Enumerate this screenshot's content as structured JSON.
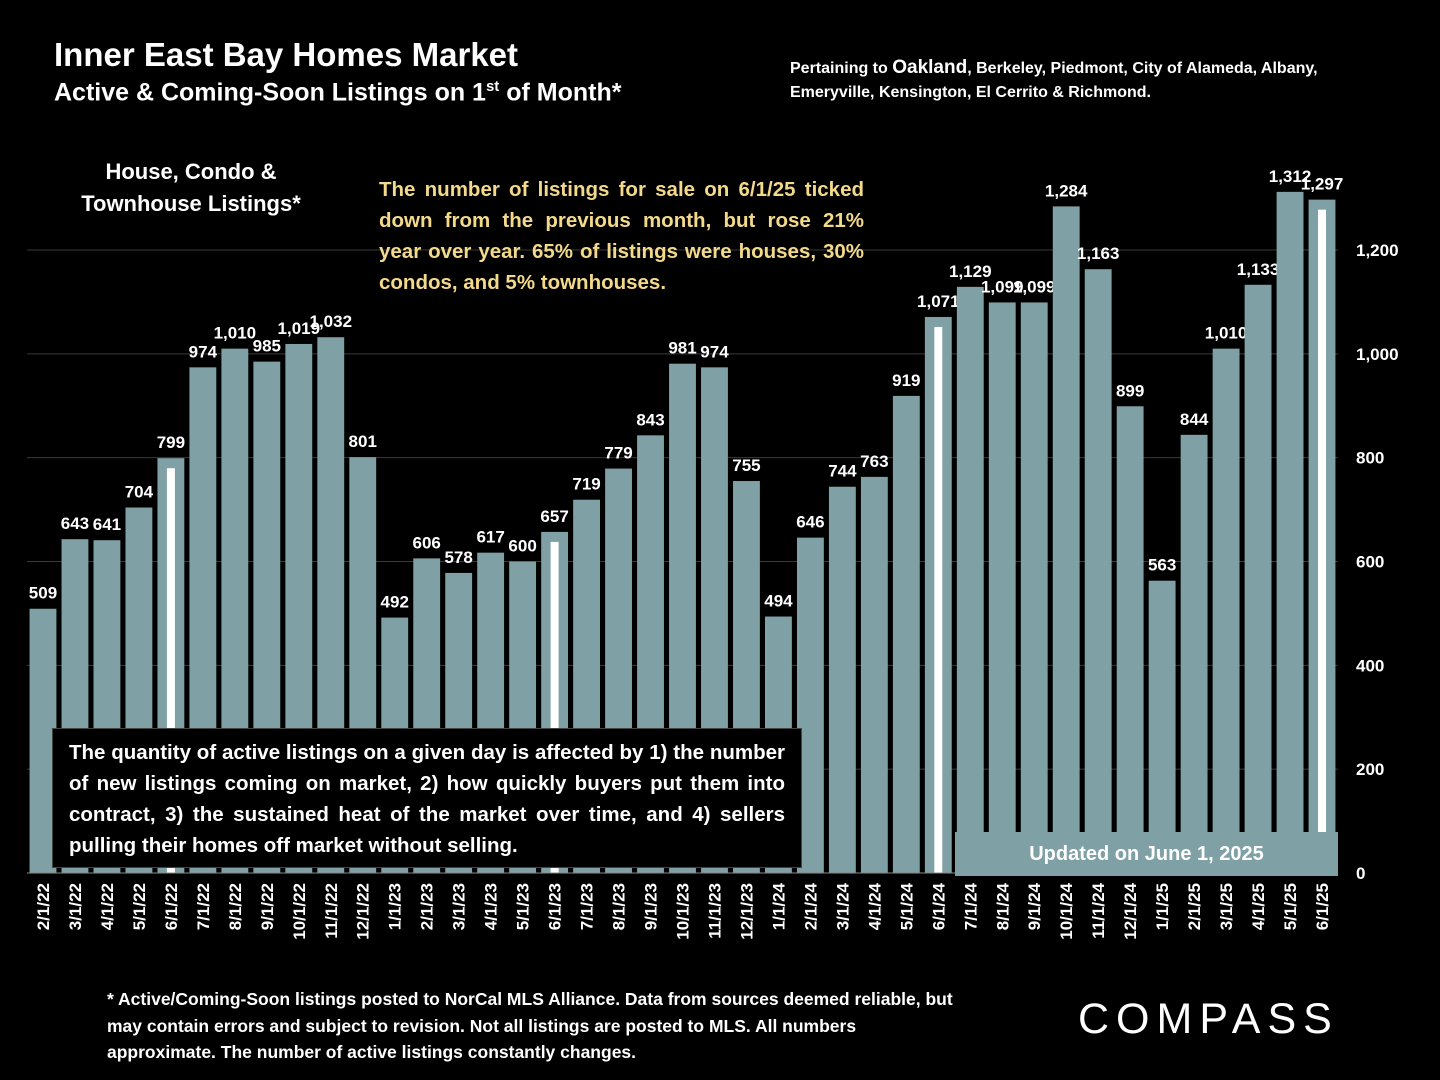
{
  "header": {
    "title": "Inner East Bay Homes Market",
    "subtitle_main": "Active & Coming-Soon Listings on 1",
    "subtitle_sup": "st",
    "subtitle_end": " of Month*",
    "pertaining_prefix": "Pertaining to ",
    "pertaining_city": "Oakland",
    "pertaining_rest": ", Berkeley, Piedmont, City of Alameda, Albany, Emeryville, Kensington, El Cerrito & Richmond."
  },
  "listing_label": "House, Condo & Townhouse Listings*",
  "note_yellow": "The number of listings for sale on 6/1/25 ticked down from the previous month, but rose 21% year over year. 65% of listings were houses, 30% condos, and 5% townhouses.",
  "note_box": "The quantity of active listings on a given day is affected by 1) the number of new listings coming on market, 2) how quickly buyers put them into contract, 3) the sustained heat of the market over time, and 4) sellers pulling their homes off market without selling.",
  "updated": "Updated on June 1, 2025",
  "footnote": "* Active/Coming-Soon listings posted to NorCal MLS Alliance.  Data from sources deemed reliable, but may contain errors and subject to revision.  Not all listings are posted to MLS. All numbers approximate. The number of active listings constantly changes.",
  "logo": "COMPASS",
  "colors": {
    "bar": "#7fa0a5",
    "background": "#000000",
    "highlight": "#ffffff",
    "note": "#f3d98a"
  },
  "chart_data": {
    "type": "bar",
    "title": "Active & Coming-Soon Listings on 1st of Month*",
    "categories": [
      "2/1/22",
      "3/1/22",
      "4/1/22",
      "5/1/22",
      "6/1/22",
      "7/1/22",
      "8/1/22",
      "9/1/22",
      "10/1/22",
      "11/1/22",
      "12/1/22",
      "1/1/23",
      "2/1/23",
      "3/1/23",
      "4/1/23",
      "5/1/23",
      "6/1/23",
      "7/1/23",
      "8/1/23",
      "9/1/23",
      "10/1/23",
      "11/1/23",
      "12/1/23",
      "1/1/24",
      "2/1/24",
      "3/1/24",
      "4/1/24",
      "5/1/24",
      "6/1/24",
      "7/1/24",
      "8/1/24",
      "9/1/24",
      "10/1/24",
      "11/1/24",
      "12/1/24",
      "1/1/25",
      "2/1/25",
      "3/1/25",
      "4/1/25",
      "5/1/25",
      "6/1/25"
    ],
    "values": [
      509,
      643,
      641,
      704,
      799,
      974,
      1010,
      985,
      1019,
      1032,
      801,
      492,
      606,
      578,
      617,
      600,
      657,
      719,
      779,
      843,
      981,
      974,
      755,
      494,
      646,
      744,
      763,
      919,
      1071,
      1129,
      1099,
      1099,
      1284,
      1163,
      899,
      563,
      844,
      1010,
      1133,
      1312,
      1297
    ],
    "labels": [
      "509",
      "643",
      "641",
      "704",
      "799",
      "974",
      "1,010",
      "985",
      "1,019",
      "1,032",
      "801",
      "492",
      "606",
      "578",
      "617",
      "600",
      "657",
      "719",
      "779",
      "843",
      "981",
      "974",
      "755",
      "494",
      "646",
      "744",
      "763",
      "919",
      "1,071",
      "1,129",
      "1,099",
      "1,099",
      "1,284",
      "1,163",
      "899",
      "563",
      "844",
      "1,010",
      "1,133",
      "1,312",
      "1,297"
    ],
    "highlighted": [
      "6/1/22",
      "6/1/23",
      "6/1/24",
      "6/1/25"
    ],
    "ylim": [
      0,
      1300
    ],
    "yticks": [
      0,
      200,
      400,
      600,
      800,
      1000,
      1200
    ],
    "ytick_labels": [
      "0",
      "200",
      "400",
      "600",
      "800",
      "1,000",
      "1,200"
    ],
    "y_axis_side": "right",
    "grid": true
  }
}
